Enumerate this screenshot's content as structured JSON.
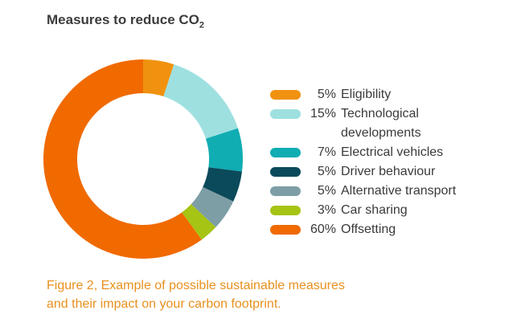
{
  "title": {
    "main": "Measures to reduce CO",
    "subscript": "2"
  },
  "caption": {
    "line1": "Figure 2, Example of possible sustainable measures",
    "line2": "and their impact on your carbon footprint."
  },
  "chart_data": {
    "type": "pie",
    "variant": "donut",
    "title": "Measures to reduce CO2",
    "legend_position": "right",
    "slices": [
      {
        "label": "Eligibility",
        "value": 5,
        "display": "5%",
        "color": "#f0920f"
      },
      {
        "label": "Technological developments",
        "value": 15,
        "display": "15%",
        "color": "#9ee0e0"
      },
      {
        "label": "Electrical vehicles",
        "value": 7,
        "display": "7%",
        "color": "#10adb3"
      },
      {
        "label": "Driver behaviour",
        "value": 5,
        "display": "5%",
        "color": "#0b4a5a"
      },
      {
        "label": "Alternative transport",
        "value": 5,
        "display": "5%",
        "color": "#7e9ea6"
      },
      {
        "label": "Car sharing",
        "value": 3,
        "display": "3%",
        "color": "#a5c414"
      },
      {
        "label": "Offsetting",
        "value": 60,
        "display": "60%",
        "color": "#f06a00"
      }
    ]
  }
}
